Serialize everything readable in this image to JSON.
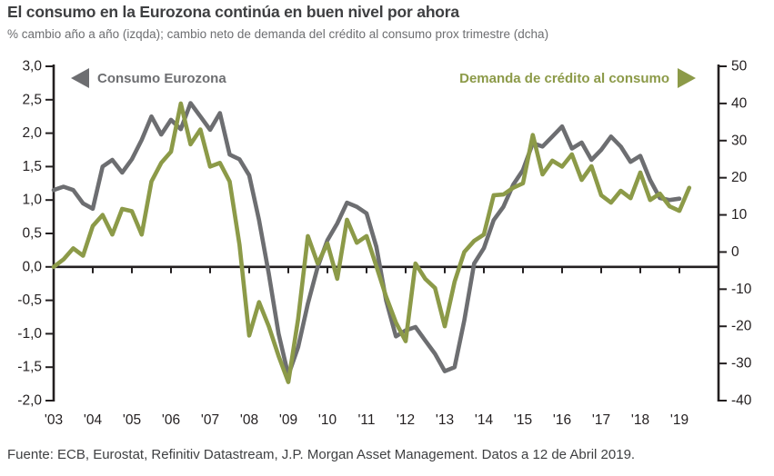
{
  "title": "El consumo en la Eurozona continúa en buen nivel por ahora",
  "subtitle": "% cambio año a año (izqda); cambio neto de demanda del crédito al consumo prox trimestre (dcha)",
  "source": "Fuente: ECB, Eurostat, Refinitiv Datastream, J.P. Morgan Asset Management. Datos a 12 de Abril 2019.",
  "colors": {
    "consumption_line": "#6d6e71",
    "credit_demand_line": "#8c9a48",
    "axis": "#231f20",
    "title_text": "#3e3f41",
    "subtitle_text": "#6d6e71"
  },
  "chart_data": {
    "type": "line",
    "x_start_year": 2003,
    "x_frequency": "quarterly",
    "x_tick_labels": [
      "'03",
      "'04",
      "'05",
      "'06",
      "'07",
      "'08",
      "'09",
      "'10",
      "'11",
      "'12",
      "'13",
      "'14",
      "'15",
      "'16",
      "'17",
      "'18",
      "'19"
    ],
    "left_axis": {
      "max": 3.0,
      "min": -2.0,
      "tick_labels": [
        "3,0",
        "2,5",
        "2,0",
        "1,5",
        "1,0",
        "0,5",
        "0,0",
        "-0,5",
        "-1,0",
        "-1,5",
        "-2,0"
      ]
    },
    "right_axis": {
      "max": 50,
      "min": -40,
      "tick_labels": [
        "50",
        "40",
        "30",
        "20",
        "10",
        "0",
        "-10",
        "-20",
        "-30",
        "-40"
      ]
    },
    "grid": false,
    "series": [
      {
        "name": "Consumo Eurozona",
        "axis": "left",
        "color": "#6d6e71",
        "start": "2003Q1",
        "values": [
          1.15,
          1.2,
          1.15,
          0.95,
          0.87,
          1.5,
          1.6,
          1.41,
          1.61,
          1.9,
          2.25,
          1.98,
          2.2,
          2.06,
          2.45,
          2.25,
          2.05,
          2.3,
          1.68,
          1.61,
          1.37,
          0.7,
          -0.1,
          -1.0,
          -1.62,
          -1.2,
          -0.55,
          0.0,
          0.4,
          0.65,
          0.96,
          0.9,
          0.8,
          0.3,
          -0.5,
          -1.04,
          -0.95,
          -0.9,
          -1.1,
          -1.3,
          -1.56,
          -1.5,
          -0.8,
          0.05,
          0.28,
          0.7,
          0.9,
          1.23,
          1.45,
          1.85,
          1.8,
          1.95,
          2.1,
          1.77,
          1.86,
          1.6,
          1.75,
          1.95,
          1.8,
          1.57,
          1.66,
          1.3,
          1.03,
          1.0,
          1.02
        ]
      },
      {
        "name": "Demanda de crédito al consumo",
        "axis": "right",
        "color": "#8c9a48",
        "start": "2003Q1",
        "values": [
          -4.0,
          -2.0,
          1.0,
          -1.0,
          7.0,
          10.0,
          4.7,
          11.6,
          11.0,
          4.7,
          19.0,
          24.0,
          27.0,
          40.0,
          29.0,
          33.0,
          23.0,
          24.0,
          19.0,
          2.0,
          -22.5,
          -13.5,
          -20.0,
          -28.0,
          -35.0,
          -18.0,
          4.3,
          -3.1,
          2.3,
          -7.2,
          8.7,
          2.5,
          4.3,
          -3.8,
          -12.0,
          -19.0,
          -24.0,
          -3.1,
          -7.2,
          -9.7,
          -20.0,
          -8.0,
          0.0,
          3.0,
          4.7,
          15.3,
          15.5,
          17.3,
          18.5,
          31.5,
          20.9,
          24.6,
          23.0,
          26.3,
          19.4,
          23.1,
          15.3,
          13.3,
          16.5,
          14.5,
          21.4,
          14.0,
          15.7,
          12.3,
          11.1,
          17.3
        ]
      }
    ]
  }
}
